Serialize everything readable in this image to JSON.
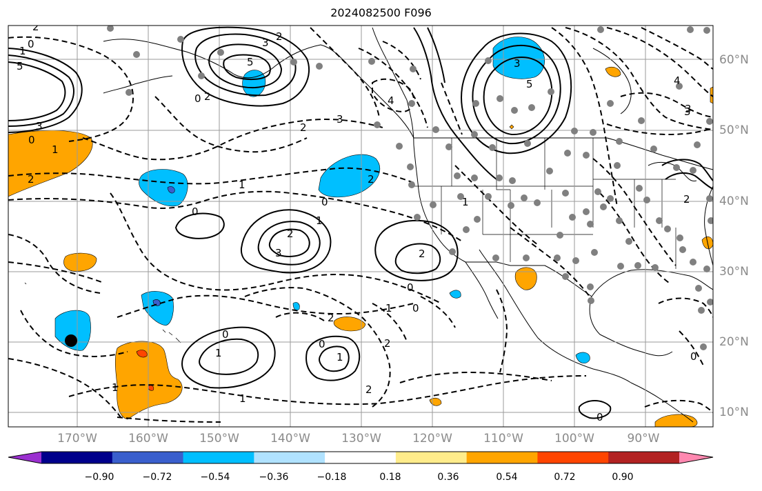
{
  "title": "2024082500 F096",
  "colors": {
    "land_border": "#000000",
    "grid": "#9a9a9a",
    "station_dot": "#808080",
    "marker": "#000000"
  },
  "lon_labels": [
    "170°W",
    "160°W",
    "150°W",
    "140°W",
    "130°W",
    "120°W",
    "110°W",
    "100°W",
    "90°W"
  ],
  "lat_labels": [
    "60°N",
    "50°N",
    "40°N",
    "30°N",
    "20°N",
    "10°N"
  ],
  "colorbar": {
    "ticks": [
      "−0.90",
      "−0.72",
      "−0.54",
      "−0.36",
      "−0.18",
      "0.18",
      "0.36",
      "0.54",
      "0.72",
      "0.90"
    ],
    "colors": [
      "#9b30d0",
      "#00008b",
      "#3a5fcd",
      "#00bfff",
      "#b0e2ff",
      "#ffffff",
      "#ffec8b",
      "#ffa500",
      "#ff4500",
      "#b22222",
      "#ff88b0"
    ],
    "extend": "both"
  },
  "contour_labels": [
    {
      "text": "2"
    },
    {
      "text": "0"
    },
    {
      "text": "1"
    },
    {
      "text": "5"
    },
    {
      "text": "3"
    },
    {
      "text": "0"
    },
    {
      "text": "1"
    },
    {
      "text": "2"
    },
    {
      "text": "3"
    },
    {
      "text": "5"
    },
    {
      "text": "2"
    },
    {
      "text": "0"
    },
    {
      "text": "2"
    },
    {
      "text": "3"
    },
    {
      "text": "4"
    },
    {
      "text": "3"
    },
    {
      "text": "5"
    },
    {
      "text": "3"
    },
    {
      "text": "2"
    },
    {
      "text": "1"
    },
    {
      "text": "0"
    },
    {
      "text": "2"
    },
    {
      "text": "1"
    },
    {
      "text": "0"
    },
    {
      "text": "2"
    },
    {
      "text": "1"
    },
    {
      "text": "3"
    },
    {
      "text": "2"
    },
    {
      "text": "0"
    },
    {
      "text": "1"
    },
    {
      "text": "0"
    },
    {
      "text": "1"
    },
    {
      "text": "2"
    },
    {
      "text": "0"
    },
    {
      "text": "1"
    },
    {
      "text": "2"
    },
    {
      "text": "1"
    },
    {
      "text": "0"
    },
    {
      "text": "1"
    },
    {
      "text": "2"
    },
    {
      "text": "0"
    },
    {
      "text": "4"
    },
    {
      "text": "3"
    },
    {
      "text": "2"
    },
    {
      "text": "0"
    }
  ]
}
